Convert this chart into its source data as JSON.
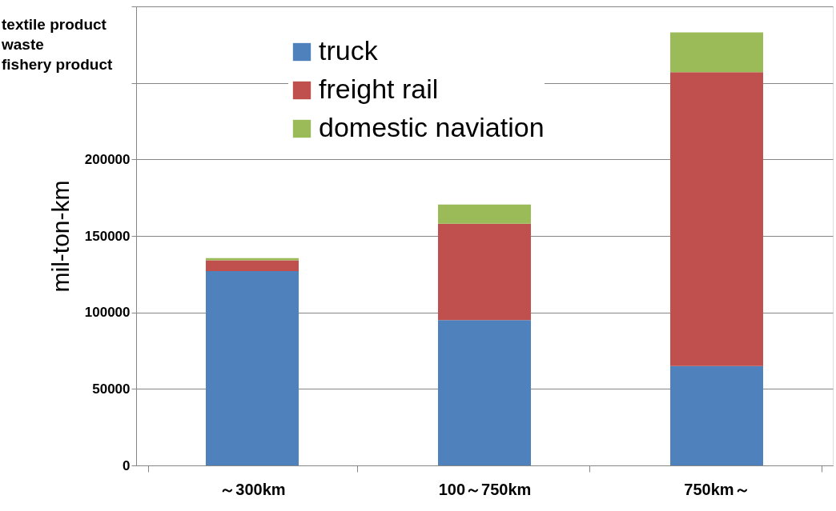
{
  "chart_data": {
    "type": "bar",
    "stacked": true,
    "ylabel": "mil-ton-km",
    "categories": [
      "～300km",
      "100～750km",
      "750km～"
    ],
    "series": [
      {
        "name": "truck",
        "color": "#4f81bd",
        "values": [
          127000,
          95000,
          65000
        ]
      },
      {
        "name": "freight rail",
        "color": "#c0504d",
        "values": [
          7000,
          63000,
          192000
        ]
      },
      {
        "name": "domestic naviation",
        "color": "#9bbb59",
        "values": [
          1500,
          12500,
          26000
        ]
      }
    ],
    "ylim": [
      0,
      300000
    ],
    "yticks": [
      0,
      50000,
      100000,
      150000,
      200000,
      {
        "value": 250000,
        "label": null
      },
      {
        "value": 300000,
        "label": null
      }
    ],
    "grid": "y",
    "legend": "top left",
    "annotations": [
      "textile product",
      "waste",
      "fishery product"
    ]
  }
}
